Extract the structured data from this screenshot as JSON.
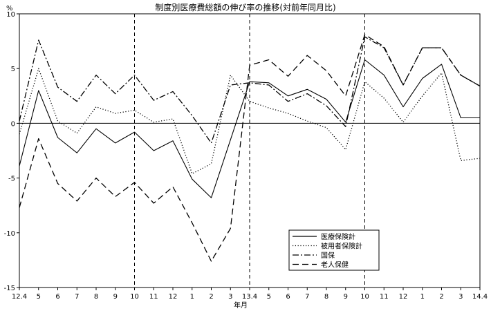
{
  "chart_data": {
    "type": "line",
    "title": "制度別医療費総額の伸び率の推移(対前年同月比)",
    "ylabel": "%",
    "xlabel": "年月",
    "ylim": [
      -15,
      10
    ],
    "yticks": [
      10,
      5,
      0,
      -5,
      -10,
      -15
    ],
    "grid": false,
    "legend_position": "bottom-right",
    "categories": [
      "12.4",
      "5",
      "6",
      "7",
      "8",
      "9",
      "10",
      "11",
      "12",
      "1",
      "2",
      "3",
      "13.4",
      "5",
      "6",
      "7",
      "8",
      "9",
      "10",
      "11",
      "12",
      "1",
      "2",
      "3",
      "14.4"
    ],
    "vertical_reference_lines_at": [
      "10",
      "13.4",
      "10"
    ],
    "series": [
      {
        "name": "医療保険計",
        "style": "solid",
        "values": [
          -3.9,
          3.0,
          -1.3,
          -2.7,
          -0.5,
          -1.8,
          -0.8,
          -2.5,
          -1.6,
          -5.1,
          -6.8,
          -1.5,
          3.8,
          3.7,
          2.5,
          3.1,
          2.2,
          0.1,
          5.8,
          4.4,
          1.5,
          4.1,
          5.4,
          0.5,
          0.5
        ]
      },
      {
        "name": "被用者保険計",
        "style": "dotted",
        "values": [
          -1.0,
          5.0,
          0.2,
          -0.9,
          1.5,
          0.9,
          1.2,
          0.1,
          0.4,
          -4.6,
          -3.7,
          4.4,
          2.0,
          1.4,
          0.9,
          0.2,
          -0.4,
          -2.4,
          3.8,
          2.3,
          0.1,
          2.5,
          4.6,
          -3.4,
          -3.2
        ]
      },
      {
        "name": "国保",
        "style": "dash-dot",
        "values": [
          0.2,
          7.6,
          3.3,
          2.0,
          4.4,
          2.7,
          4.4,
          2.1,
          2.9,
          0.7,
          -1.8,
          3.5,
          3.7,
          3.5,
          2.0,
          2.7,
          1.6,
          -0.3,
          7.9,
          6.9,
          3.5,
          6.9,
          6.9,
          4.4,
          3.4
        ]
      },
      {
        "name": "老人保健",
        "style": "dashed",
        "values": [
          -7.7,
          -1.4,
          -5.5,
          -7.1,
          -5.0,
          -6.7,
          -5.4,
          -7.3,
          -5.8,
          -9.1,
          -12.6,
          -9.6,
          5.3,
          5.8,
          4.3,
          6.2,
          4.8,
          2.5,
          8.1,
          7.0,
          3.5,
          6.9,
          6.9,
          4.4,
          3.4
        ]
      }
    ]
  },
  "legend_items": [
    {
      "label": "医療保険計",
      "style": "solid"
    },
    {
      "label": "被用者保険計",
      "style": "dotted"
    },
    {
      "label": "国保",
      "style": "dash-dot"
    },
    {
      "label": "老人保健",
      "style": "dashed"
    }
  ]
}
